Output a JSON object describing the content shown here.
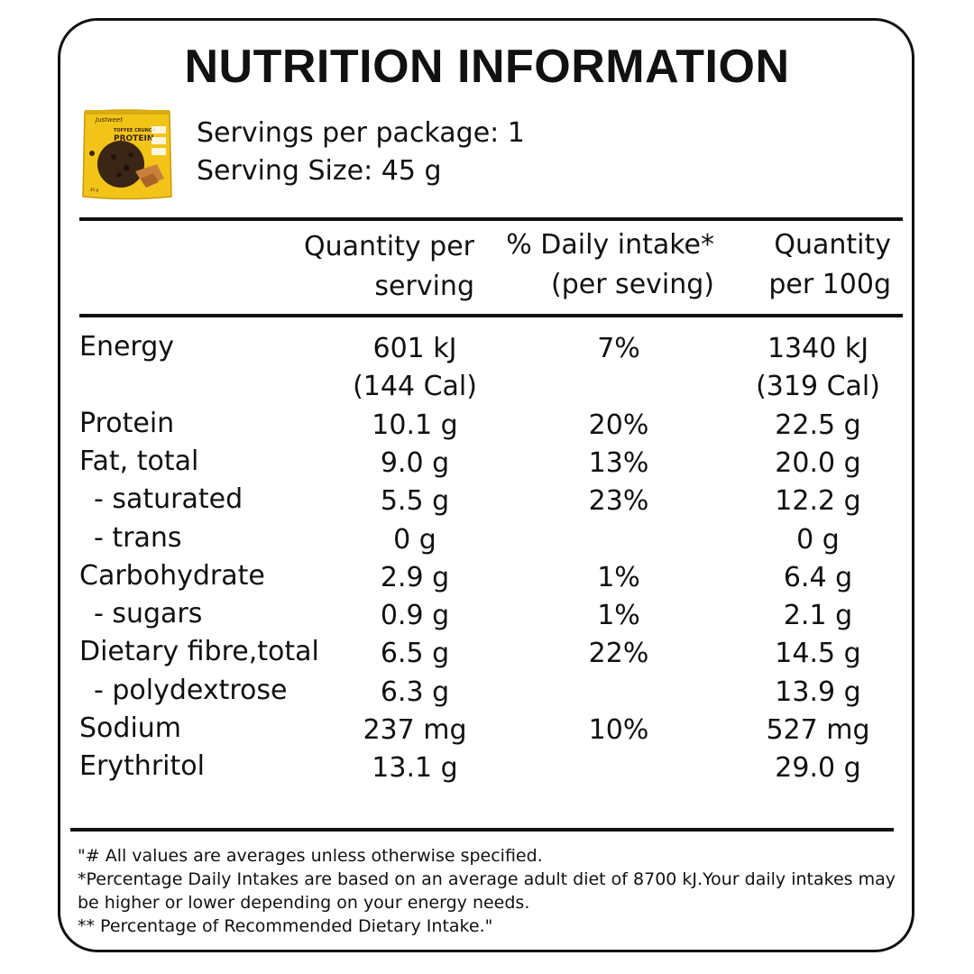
{
  "header": {
    "title": "NUTRITION INFORMATION",
    "servings_per_package": "Servings per package: 1",
    "serving_size": "Serving Size: 45 g",
    "product_image": {
      "brand_text": "Justweet",
      "name_text": "TOFFEE CRUNCH PROTEIN",
      "colors": {
        "bag": "#f2c418",
        "cookie": "#3a2516",
        "accent": "#c9813a"
      }
    }
  },
  "columns": {
    "qty_serving": [
      "Quantity per",
      "serving"
    ],
    "daily_intake": [
      "% Daily  intake*",
      "(per seving)"
    ],
    "qty_100g": [
      "Quantity",
      "per 100g"
    ]
  },
  "rows": [
    {
      "name": "Energy",
      "indent": false,
      "qty_serving": "601 kJ",
      "daily": "7%",
      "qty_100g": "1340 kJ"
    },
    {
      "name": "",
      "indent": false,
      "qty_serving": "(144 Cal)",
      "daily": "",
      "qty_100g": "(319 Cal)"
    },
    {
      "name": "Protein",
      "indent": false,
      "qty_serving": "10.1 g",
      "daily": "20%",
      "qty_100g": "22.5 g"
    },
    {
      "name": "Fat, total",
      "indent": false,
      "qty_serving": "9.0 g",
      "daily": "13%",
      "qty_100g": "20.0 g"
    },
    {
      "name": "- saturated",
      "indent": true,
      "qty_serving": "5.5 g",
      "daily": "23%",
      "qty_100g": "12.2 g"
    },
    {
      "name": "- trans",
      "indent": true,
      "qty_serving": "0 g",
      "daily": "",
      "qty_100g": "0 g"
    },
    {
      "name": "Carbohydrate",
      "indent": false,
      "qty_serving": "2.9 g",
      "daily": "1%",
      "qty_100g": "6.4 g"
    },
    {
      "name": "- sugars",
      "indent": true,
      "qty_serving": "0.9 g",
      "daily": "1%",
      "qty_100g": "2.1 g"
    },
    {
      "name": "Dietary fibre,total",
      "indent": false,
      "qty_serving": "6.5 g",
      "daily": "22%",
      "qty_100g": "14.5 g"
    },
    {
      "name": "- polydextrose",
      "indent": true,
      "qty_serving": "6.3 g",
      "daily": "",
      "qty_100g": "13.9 g"
    },
    {
      "name": "Sodium",
      "indent": false,
      "qty_serving": "237 mg",
      "daily": "10%",
      "qty_100g": "527 mg"
    },
    {
      "name": "Erythritol",
      "indent": false,
      "qty_serving": "13.1 g",
      "daily": "",
      "qty_100g": "29.0 g"
    }
  ],
  "footnotes": [
    "\"# All values are averages unless otherwise specified.",
    "*Percentage Daily Intakes are based on an average adult diet of 8700 kJ.Your daily intakes may",
    "be higher or lower depending on your energy needs.",
    "** Percentage of Recommended Dietary Intake.\""
  ]
}
